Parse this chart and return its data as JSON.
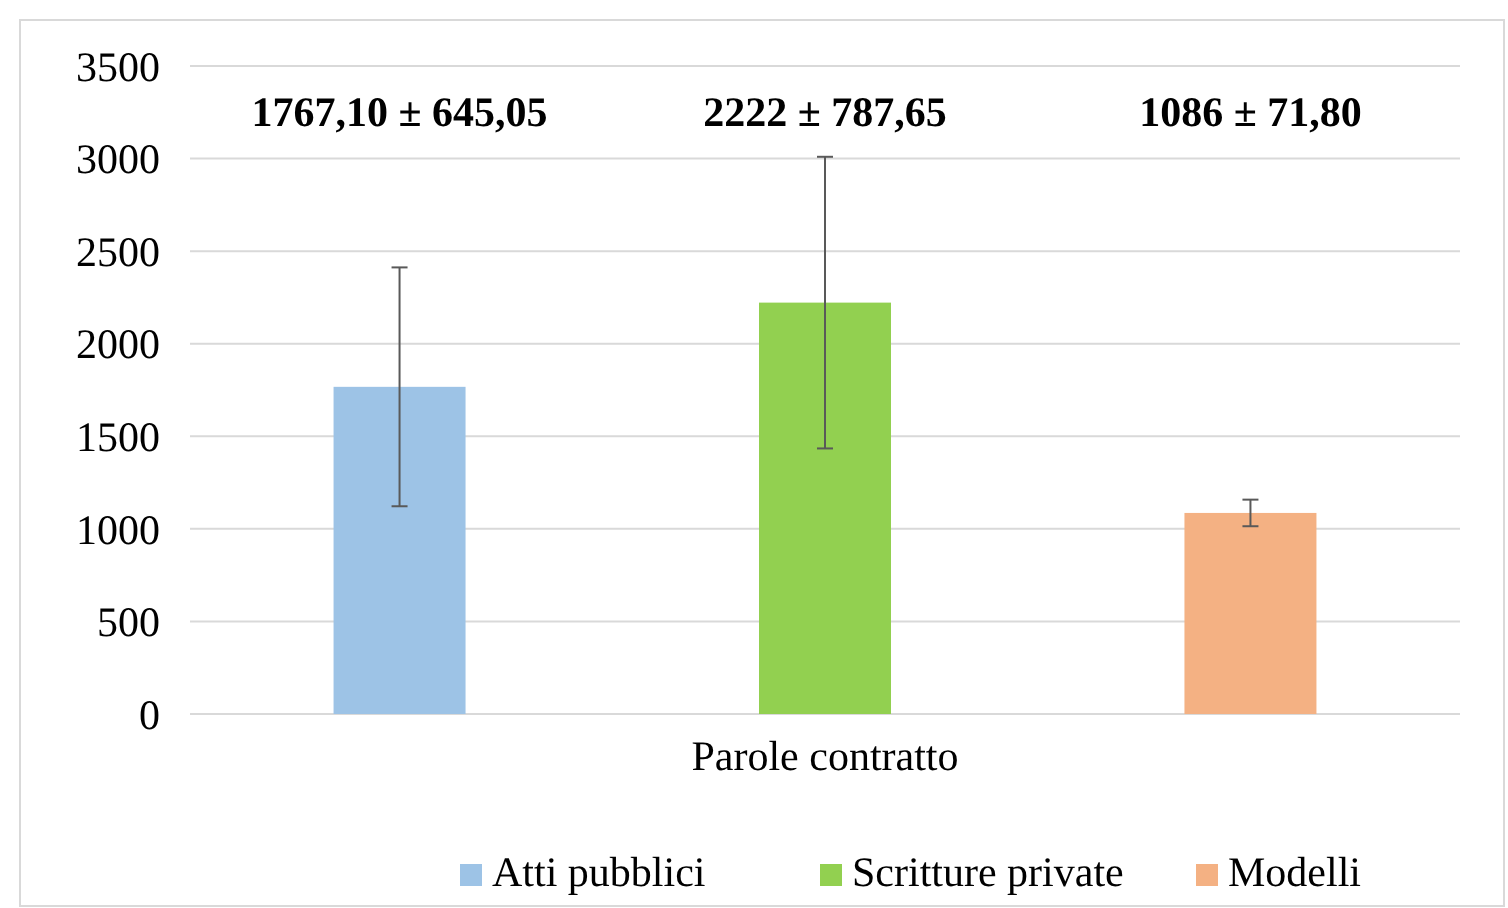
{
  "chart_data": {
    "type": "bar",
    "categories": [
      "Parole contratto"
    ],
    "series": [
      {
        "name": "Atti pubblici",
        "color": "#9dc3e6",
        "values": [
          1767.1
        ],
        "errors": [
          645.05
        ]
      },
      {
        "name": "Scritture private",
        "color": "#92d050",
        "values": [
          2222
        ],
        "errors": [
          787.65
        ]
      },
      {
        "name": "Modelli",
        "color": "#f4b183",
        "values": [
          1086
        ],
        "errors": [
          71.8
        ]
      }
    ],
    "annotations": [
      "1767,10 ± 645,05",
      "2222 ± 787,65",
      "1086 ± 71,80"
    ],
    "ylim": [
      0,
      3500
    ],
    "yticks": [
      0,
      500,
      1000,
      1500,
      2000,
      2500,
      3000,
      3500
    ],
    "grid": "y",
    "legend": "bottom"
  }
}
